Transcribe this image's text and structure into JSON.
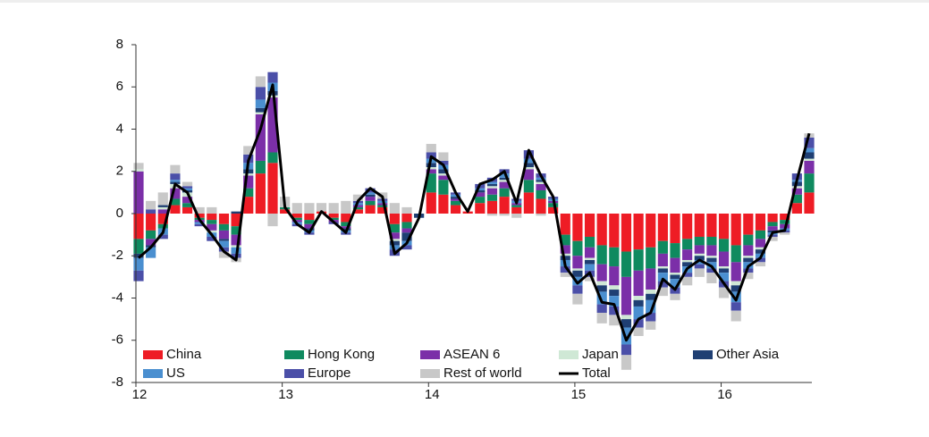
{
  "chart_data": {
    "type": "bar",
    "stacked": true,
    "categories": [
      "12",
      null,
      null,
      null,
      null,
      null,
      null,
      null,
      null,
      null,
      null,
      null,
      "13",
      null,
      null,
      null,
      null,
      null,
      null,
      null,
      null,
      null,
      null,
      null,
      "14",
      null,
      null,
      null,
      null,
      null,
      null,
      null,
      null,
      null,
      null,
      null,
      "15",
      null,
      null,
      null,
      null,
      null,
      null,
      null,
      null,
      null,
      null,
      null,
      "16",
      null,
      null,
      null,
      null,
      null,
      null,
      null
    ],
    "ylim": [
      -8,
      8
    ],
    "yticks": [
      -8,
      -6,
      -4,
      -2,
      0,
      2,
      4,
      6,
      8
    ],
    "legend": "bottom",
    "series": [
      {
        "name": "China",
        "color": "#ee1c25",
        "values": [
          -1.2,
          -0.8,
          -0.5,
          0.4,
          0.3,
          -0.2,
          -0.3,
          -0.5,
          -0.6,
          0.8,
          1.9,
          2.4,
          0.2,
          -0.2,
          -0.3,
          0.1,
          -0.2,
          -0.4,
          0.2,
          0.4,
          0.3,
          -0.5,
          -0.4,
          0.0,
          1.0,
          0.9,
          0.4,
          0.1,
          0.5,
          0.6,
          0.8,
          0.3,
          1.0,
          0.7,
          0.3,
          -1.0,
          -1.3,
          -1.1,
          -1.5,
          -1.6,
          -1.8,
          -1.7,
          -1.6,
          -1.3,
          -1.4,
          -1.2,
          -1.1,
          -1.1,
          -1.2,
          -1.5,
          -1.0,
          -0.8,
          -0.4,
          -0.3,
          0.5,
          1.0
        ]
      },
      {
        "name": "Hong Kong",
        "color": "#0f8a5f",
        "values": [
          -0.7,
          -0.4,
          -0.2,
          0.3,
          0.2,
          -0.1,
          -0.2,
          -0.3,
          -0.4,
          0.4,
          0.6,
          0.5,
          0.1,
          -0.1,
          -0.2,
          0.0,
          -0.1,
          -0.2,
          0.1,
          0.2,
          0.1,
          -0.4,
          -0.3,
          0.0,
          0.9,
          0.7,
          0.2,
          0.0,
          0.3,
          0.3,
          0.4,
          0.1,
          0.6,
          0.4,
          0.2,
          -0.5,
          -0.7,
          -0.5,
          -0.9,
          -0.9,
          -1.2,
          -1.0,
          -1.0,
          -0.6,
          -0.7,
          -0.5,
          -0.4,
          -0.4,
          -0.6,
          -0.8,
          -0.5,
          -0.4,
          -0.2,
          -0.2,
          0.4,
          0.9
        ]
      },
      {
        "name": "ASEAN 6",
        "color": "#7b2fa8",
        "values": [
          2.0,
          -0.3,
          0.2,
          0.5,
          0.3,
          -0.1,
          -0.3,
          -0.4,
          -0.5,
          0.6,
          2.2,
          2.6,
          0.0,
          -0.1,
          -0.2,
          0.0,
          -0.1,
          -0.1,
          0.1,
          0.2,
          0.1,
          -0.3,
          -0.2,
          0.0,
          0.2,
          0.2,
          0.1,
          0.0,
          0.2,
          0.3,
          0.3,
          0.1,
          0.5,
          0.3,
          0.1,
          -0.4,
          -0.6,
          -0.5,
          -0.8,
          -0.9,
          -1.8,
          -1.2,
          -1.0,
          -0.6,
          -0.7,
          -0.5,
          -0.4,
          -0.5,
          -0.7,
          -0.9,
          -0.5,
          -0.4,
          -0.2,
          -0.2,
          0.3,
          0.6
        ]
      },
      {
        "name": "Japan",
        "color": "#cfe8d5",
        "values": [
          0.1,
          0.0,
          0.1,
          0.2,
          0.2,
          0.0,
          -0.1,
          0.0,
          -0.1,
          0.1,
          0.1,
          0.1,
          0.0,
          0.0,
          0.0,
          0.0,
          0.0,
          0.0,
          0.0,
          0.0,
          0.0,
          -0.1,
          0.0,
          0.0,
          0.1,
          0.1,
          0.0,
          0.0,
          0.0,
          0.1,
          0.1,
          0.0,
          0.1,
          0.1,
          0.0,
          -0.1,
          -0.1,
          -0.1,
          -0.2,
          -0.2,
          -0.2,
          -0.2,
          -0.2,
          -0.1,
          -0.1,
          -0.1,
          -0.1,
          -0.1,
          -0.1,
          -0.2,
          -0.1,
          -0.1,
          0.0,
          0.0,
          0.1,
          0.1
        ]
      },
      {
        "name": "Other Asia",
        "color": "#1f3f73",
        "values": [
          -0.2,
          -0.1,
          0.1,
          0.1,
          0.1,
          0.0,
          0.0,
          -0.1,
          0.1,
          0.2,
          0.2,
          0.2,
          0.0,
          0.0,
          -0.1,
          0.0,
          0.0,
          -0.1,
          0.0,
          0.1,
          0.0,
          -0.2,
          -0.4,
          -0.2,
          0.2,
          0.2,
          0.1,
          0.0,
          0.1,
          0.1,
          0.1,
          0.0,
          0.2,
          0.1,
          0.0,
          -0.2,
          -0.3,
          -0.2,
          -0.3,
          -0.3,
          -0.4,
          -0.3,
          -0.3,
          -0.2,
          -0.2,
          -0.2,
          -0.2,
          -0.2,
          -0.2,
          -0.3,
          -0.2,
          -0.2,
          -0.1,
          0.0,
          0.2,
          0.3
        ]
      },
      {
        "name": "US",
        "color": "#4a8fd0",
        "values": [
          -0.6,
          -0.5,
          -0.3,
          0.1,
          0.1,
          -0.1,
          -0.2,
          -0.3,
          -0.3,
          0.3,
          0.4,
          0.4,
          0.0,
          -0.1,
          -0.1,
          0.0,
          0.0,
          -0.1,
          0.1,
          0.1,
          0.1,
          -0.2,
          -0.2,
          0.0,
          0.2,
          0.2,
          0.1,
          0.0,
          0.1,
          0.1,
          0.2,
          0.1,
          0.2,
          0.1,
          0.1,
          -0.3,
          -0.4,
          -0.3,
          -0.6,
          -0.5,
          -0.8,
          -0.6,
          -0.6,
          -0.4,
          -0.4,
          -0.3,
          -0.2,
          -0.3,
          -0.4,
          -0.5,
          -0.3,
          -0.2,
          -0.1,
          -0.1,
          0.1,
          0.2
        ]
      },
      {
        "name": "Europe",
        "color": "#4b4fa8",
        "values": [
          -0.5,
          0.2,
          -0.2,
          0.3,
          0.1,
          -0.1,
          -0.2,
          -0.2,
          -0.2,
          0.4,
          0.6,
          0.5,
          0.0,
          -0.1,
          -0.1,
          0.0,
          -0.1,
          -0.1,
          0.1,
          0.2,
          0.1,
          -0.3,
          -0.2,
          0.0,
          0.3,
          0.2,
          0.1,
          0.0,
          0.2,
          0.2,
          0.2,
          0.1,
          0.4,
          0.2,
          0.1,
          -0.3,
          -0.4,
          -0.3,
          -0.4,
          -0.4,
          -0.5,
          -0.4,
          -0.4,
          -0.3,
          -0.3,
          -0.2,
          -0.2,
          -0.2,
          -0.3,
          -0.4,
          -0.2,
          -0.2,
          -0.1,
          -0.1,
          0.3,
          0.5
        ]
      },
      {
        "name": "Rest of world",
        "color": "#c8c8c8",
        "values": [
          0.3,
          0.4,
          0.6,
          0.4,
          0.2,
          0.3,
          0.3,
          -0.3,
          -0.2,
          0.4,
          0.5,
          -0.6,
          0.5,
          0.5,
          0.5,
          0.4,
          0.5,
          0.6,
          0.3,
          0.0,
          0.3,
          0.5,
          0.3,
          0.0,
          0.4,
          0.4,
          0.0,
          0.0,
          0.0,
          -0.1,
          -0.1,
          -0.2,
          0.0,
          -0.1,
          0.0,
          -0.2,
          -0.5,
          -0.2,
          -0.5,
          -0.5,
          -0.7,
          -0.4,
          -0.4,
          -0.4,
          -0.3,
          -0.4,
          -0.4,
          -0.5,
          -0.5,
          -0.5,
          -0.3,
          -0.2,
          -0.2,
          -0.1,
          0.0,
          0.2
        ]
      },
      {
        "name": "Total",
        "color": "#000000",
        "type": "line",
        "values": [
          -2.1,
          -1.6,
          -0.9,
          1.4,
          1.0,
          -0.3,
          -1.0,
          -1.8,
          -2.2,
          2.5,
          4.0,
          6.1,
          0.3,
          -0.5,
          -0.9,
          0.1,
          -0.4,
          -0.9,
          0.6,
          1.2,
          0.8,
          -1.9,
          -1.4,
          -0.2,
          2.7,
          2.3,
          1.0,
          0.1,
          1.4,
          1.6,
          2.0,
          0.5,
          3.0,
          1.8,
          0.8,
          -2.5,
          -3.3,
          -2.8,
          -4.2,
          -4.3,
          -6.0,
          -5.0,
          -4.7,
          -3.1,
          -3.6,
          -2.6,
          -2.2,
          -2.5,
          -3.3,
          -4.1,
          -2.5,
          -2.1,
          -0.9,
          -0.8,
          1.6,
          3.8
        ]
      }
    ]
  }
}
